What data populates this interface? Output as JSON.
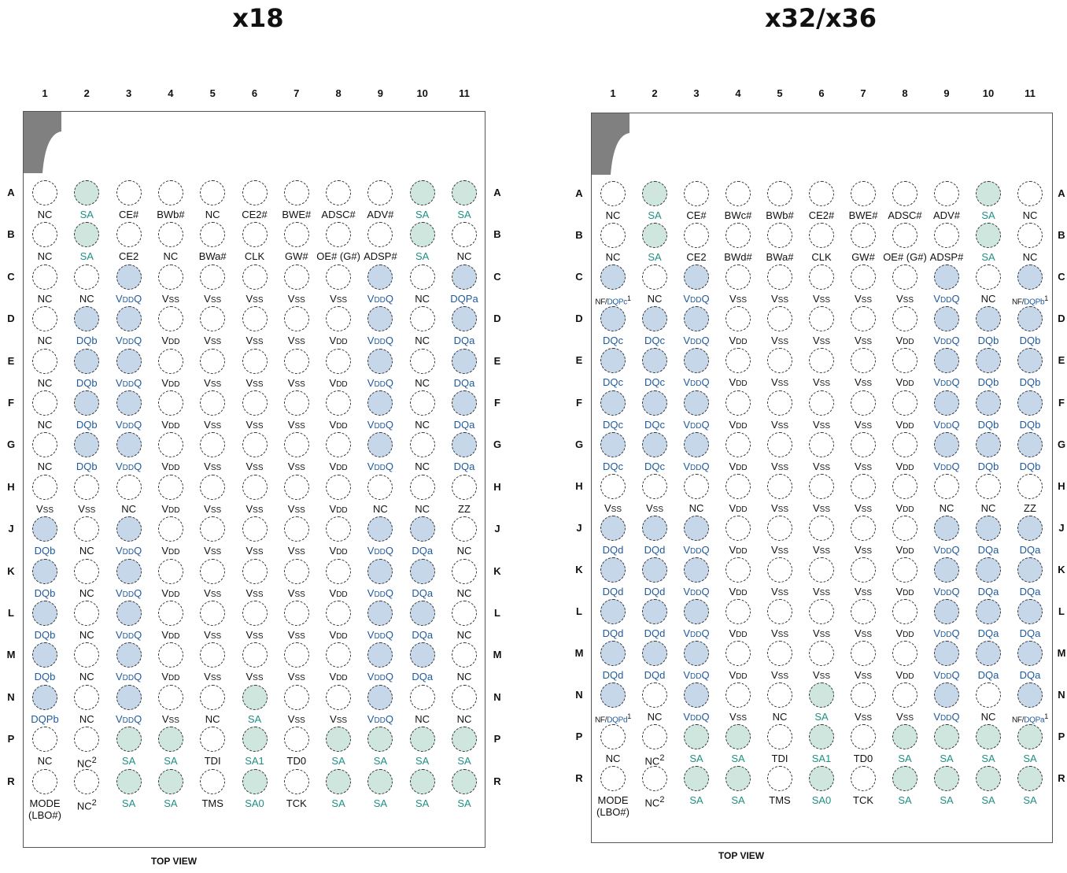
{
  "col_labels": [
    "1",
    "2",
    "3",
    "4",
    "5",
    "6",
    "7",
    "8",
    "9",
    "10",
    "11"
  ],
  "row_labels": [
    "A",
    "B",
    "C",
    "D",
    "E",
    "F",
    "G",
    "H",
    "J",
    "K",
    "L",
    "M",
    "N",
    "P",
    "R"
  ],
  "colors": {
    "address_fill": "#cfe6df",
    "address_text": "#1f8f84",
    "dq_fill": "#c7d7ea",
    "dq_text": "#1e5a9c",
    "notch": "#808080"
  },
  "panels": [
    {
      "title": "x18",
      "footer": "TOP VIEW",
      "balls": [
        [
          "NC",
          "SA",
          "CE#",
          "BWb#",
          "NC",
          "CE2#",
          "BWE#",
          "ADSC#",
          "ADV#",
          "SA",
          "SA"
        ],
        [
          "NC",
          "SA",
          "CE2",
          "NC",
          "BWa#",
          "CLK",
          "GW#",
          "OE# (G#)",
          "ADSP#",
          "SA",
          "NC"
        ],
        [
          "NC",
          "NC",
          "VDDQ",
          "VSS",
          "VSS",
          "VSS",
          "VSS",
          "VSS",
          "VDDQ",
          "NC",
          "DQPa"
        ],
        [
          "NC",
          "DQb",
          "VDDQ",
          "VDD",
          "VSS",
          "VSS",
          "VSS",
          "VDD",
          "VDDQ",
          "NC",
          "DQa"
        ],
        [
          "NC",
          "DQb",
          "VDDQ",
          "VDD",
          "VSS",
          "VSS",
          "VSS",
          "VDD",
          "VDDQ",
          "NC",
          "DQa"
        ],
        [
          "NC",
          "DQb",
          "VDDQ",
          "VDD",
          "VSS",
          "VSS",
          "VSS",
          "VDD",
          "VDDQ",
          "NC",
          "DQa"
        ],
        [
          "NC",
          "DQb",
          "VDDQ",
          "VDD",
          "VSS",
          "VSS",
          "VSS",
          "VDD",
          "VDDQ",
          "NC",
          "DQa"
        ],
        [
          "VSS",
          "VSS",
          "NC",
          "VDD",
          "VSS",
          "VSS",
          "VSS",
          "VDD",
          "NC",
          "NC",
          "ZZ"
        ],
        [
          "DQb",
          "NC",
          "VDDQ",
          "VDD",
          "VSS",
          "VSS",
          "VSS",
          "VDD",
          "VDDQ",
          "DQa",
          "NC"
        ],
        [
          "DQb",
          "NC",
          "VDDQ",
          "VDD",
          "VSS",
          "VSS",
          "VSS",
          "VDD",
          "VDDQ",
          "DQa",
          "NC"
        ],
        [
          "DQb",
          "NC",
          "VDDQ",
          "VDD",
          "VSS",
          "VSS",
          "VSS",
          "VDD",
          "VDDQ",
          "DQa",
          "NC"
        ],
        [
          "DQb",
          "NC",
          "VDDQ",
          "VDD",
          "VSS",
          "VSS",
          "VSS",
          "VDD",
          "VDDQ",
          "DQa",
          "NC"
        ],
        [
          "DQPb",
          "NC",
          "VDDQ",
          "VSS",
          "NC",
          "SA",
          "VSS",
          "VSS",
          "VDDQ",
          "NC",
          "NC"
        ],
        [
          "NC",
          "NC2",
          "SA",
          "SA",
          "TDI",
          "SA1",
          "TD0",
          "SA",
          "SA",
          "SA",
          "SA"
        ],
        [
          "MODE (LBO#)",
          "NC2",
          "SA",
          "SA",
          "TMS",
          "SA0",
          "TCK",
          "SA",
          "SA",
          "SA",
          "SA"
        ]
      ]
    },
    {
      "title": "x32/x36",
      "footer": "TOP VIEW",
      "balls": [
        [
          "NC",
          "SA",
          "CE#",
          "BWc#",
          "BWb#",
          "CE2#",
          "BWE#",
          "ADSC#",
          "ADV#",
          "SA",
          "NC"
        ],
        [
          "NC",
          "SA",
          "CE2",
          "BWd#",
          "BWa#",
          "CLK",
          "GW#",
          "OE# (G#)",
          "ADSP#",
          "SA",
          "NC"
        ],
        [
          "NF/DQPc1",
          "NC",
          "VDDQ",
          "VSS",
          "VSS",
          "VSS",
          "VSS",
          "VSS",
          "VDDQ",
          "NC",
          "NF/DQPb1"
        ],
        [
          "DQc",
          "DQc",
          "VDDQ",
          "VDD",
          "VSS",
          "VSS",
          "VSS",
          "VDD",
          "VDDQ",
          "DQb",
          "DQb"
        ],
        [
          "DQc",
          "DQc",
          "VDDQ",
          "VDD",
          "VSS",
          "VSS",
          "VSS",
          "VDD",
          "VDDQ",
          "DQb",
          "DQb"
        ],
        [
          "DQc",
          "DQc",
          "VDDQ",
          "VDD",
          "VSS",
          "VSS",
          "VSS",
          "VDD",
          "VDDQ",
          "DQb",
          "DQb"
        ],
        [
          "DQc",
          "DQc",
          "VDDQ",
          "VDD",
          "VSS",
          "VSS",
          "VSS",
          "VDD",
          "VDDQ",
          "DQb",
          "DQb"
        ],
        [
          "VSS",
          "VSS",
          "NC",
          "VDD",
          "VSS",
          "VSS",
          "VSS",
          "VDD",
          "NC",
          "NC",
          "ZZ"
        ],
        [
          "DQd",
          "DQd",
          "VDDQ",
          "VDD",
          "VSS",
          "VSS",
          "VSS",
          "VDD",
          "VDDQ",
          "DQa",
          "DQa"
        ],
        [
          "DQd",
          "DQd",
          "VDDQ",
          "VDD",
          "VSS",
          "VSS",
          "VSS",
          "VDD",
          "VDDQ",
          "DQa",
          "DQa"
        ],
        [
          "DQd",
          "DQd",
          "VDDQ",
          "VDD",
          "VSS",
          "VSS",
          "VSS",
          "VDD",
          "VDDQ",
          "DQa",
          "DQa"
        ],
        [
          "DQd",
          "DQd",
          "VDDQ",
          "VDD",
          "VSS",
          "VSS",
          "VSS",
          "VDD",
          "VDDQ",
          "DQa",
          "DQa"
        ],
        [
          "NF/DQPd1",
          "NC",
          "VDDQ",
          "VSS",
          "NC",
          "SA",
          "VSS",
          "VSS",
          "VDDQ",
          "NC",
          "NF/DQPa1"
        ],
        [
          "NC",
          "NC2",
          "SA",
          "SA",
          "TDI",
          "SA1",
          "TD0",
          "SA",
          "SA",
          "SA",
          "SA"
        ],
        [
          "MODE (LBO#)",
          "NC2",
          "SA",
          "SA",
          "TMS",
          "SA0",
          "TCK",
          "SA",
          "SA",
          "SA",
          "SA"
        ]
      ]
    }
  ]
}
